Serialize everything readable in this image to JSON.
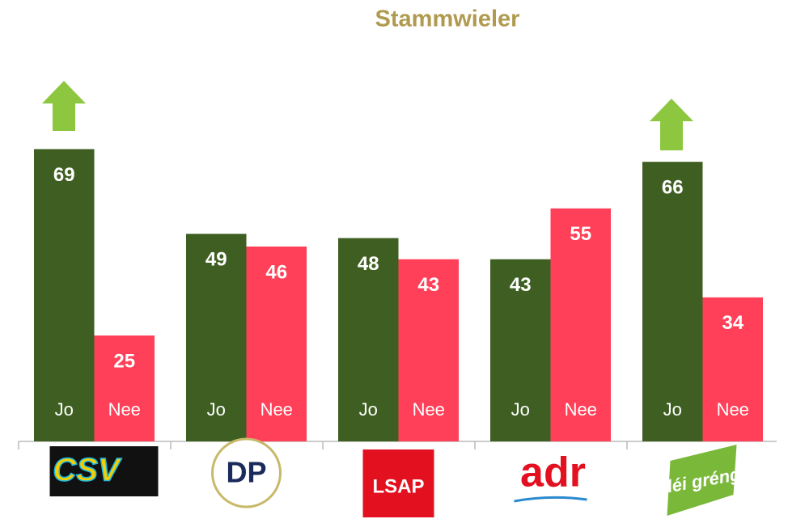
{
  "chart_data": {
    "type": "bar",
    "title": "Stammwieler",
    "categories": [
      "CSV",
      "DP",
      "LSAP",
      "adr",
      "déi gréng"
    ],
    "series": [
      {
        "name": "Jo",
        "color": "#3f5f22",
        "values": [
          69,
          49,
          48,
          43,
          66
        ]
      },
      {
        "name": "Nee",
        "color": "#ff4058",
        "values": [
          25,
          46,
          43,
          55,
          34
        ]
      }
    ]
  }
}
